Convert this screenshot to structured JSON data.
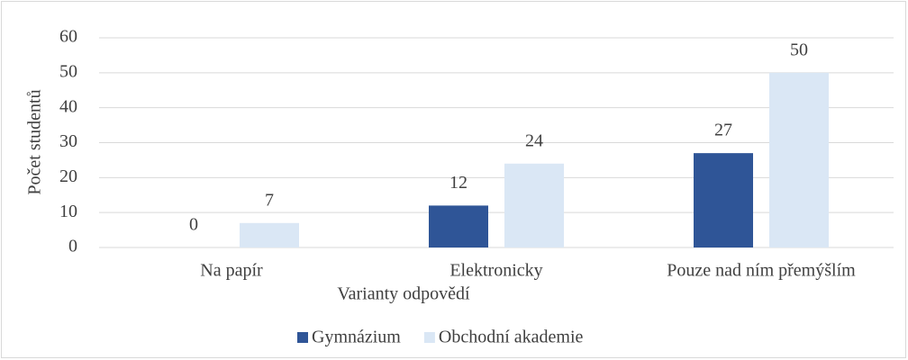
{
  "chart_data": {
    "type": "bar",
    "categories": [
      "Na papír",
      "Elektronicky",
      "Pouze nad ním přemýšlím"
    ],
    "series": [
      {
        "name": "Gymnázium",
        "color": "#2f5597",
        "values": [
          0,
          12,
          27
        ]
      },
      {
        "name": "Obchodní akademie",
        "color": "#dae7f5",
        "values": [
          7,
          24,
          50
        ]
      }
    ],
    "ylim": [
      0,
      60
    ],
    "yticks": [
      0,
      10,
      20,
      30,
      40,
      50,
      60
    ],
    "y_label": "Počet studentů",
    "x_label": "Varianty odpovědí",
    "grid": true,
    "legend": "bottom"
  }
}
